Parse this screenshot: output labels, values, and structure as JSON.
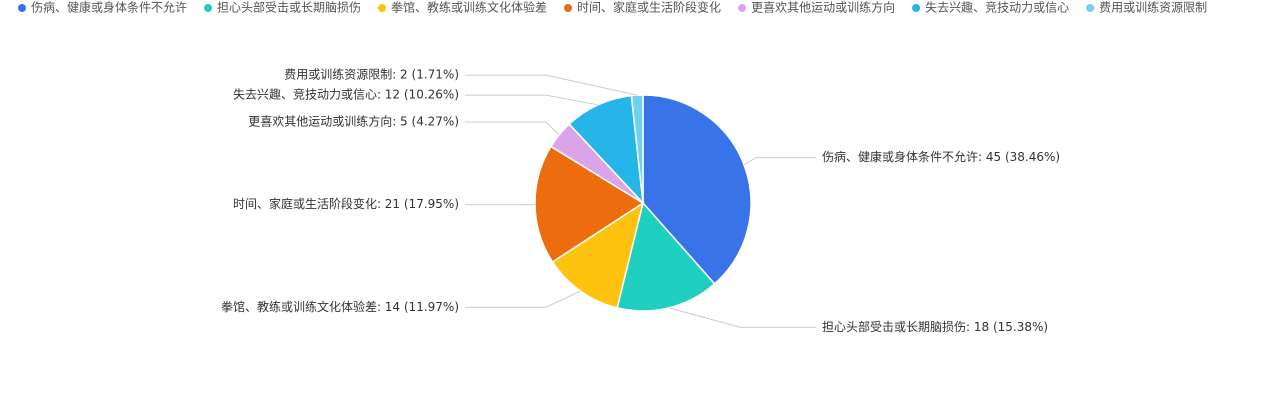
{
  "chart_data": {
    "type": "pie",
    "categories": [
      "伤病、健康或身体条件不允许",
      "担心头部受击或长期脑损伤",
      "拳馆、教练或训练文化体验差",
      "时间、家庭或生活阶段变化",
      "更喜欢其他运动或训练方向",
      "失去兴趣、竞技动力或信心",
      "费用或训练资源限制"
    ],
    "values": [
      45,
      18,
      14,
      21,
      5,
      12,
      2
    ],
    "value_labels": [
      "伤病、健康或身体条件不允许: 45 (38.46%)",
      "担心头部受击或长期脑损伤: 18 (15.38%)",
      "拳馆、教练或训练文化体验差: 14 (11.97%)",
      "时间、家庭或生活阶段变化: 21 (17.95%)",
      "更喜欢其他运动或训练方向: 5 (4.27%)",
      "失去兴趣、竞技动力或信心: 12 (10.26%)",
      "费用或训练资源限制: 2 (1.71%)"
    ],
    "colors": [
      "#3873e8",
      "#1fcfc0",
      "#fec30f",
      "#ec6c0e",
      "#dca4e8",
      "#25b5e8",
      "#6fd0ef"
    ],
    "legend": "top-left"
  }
}
